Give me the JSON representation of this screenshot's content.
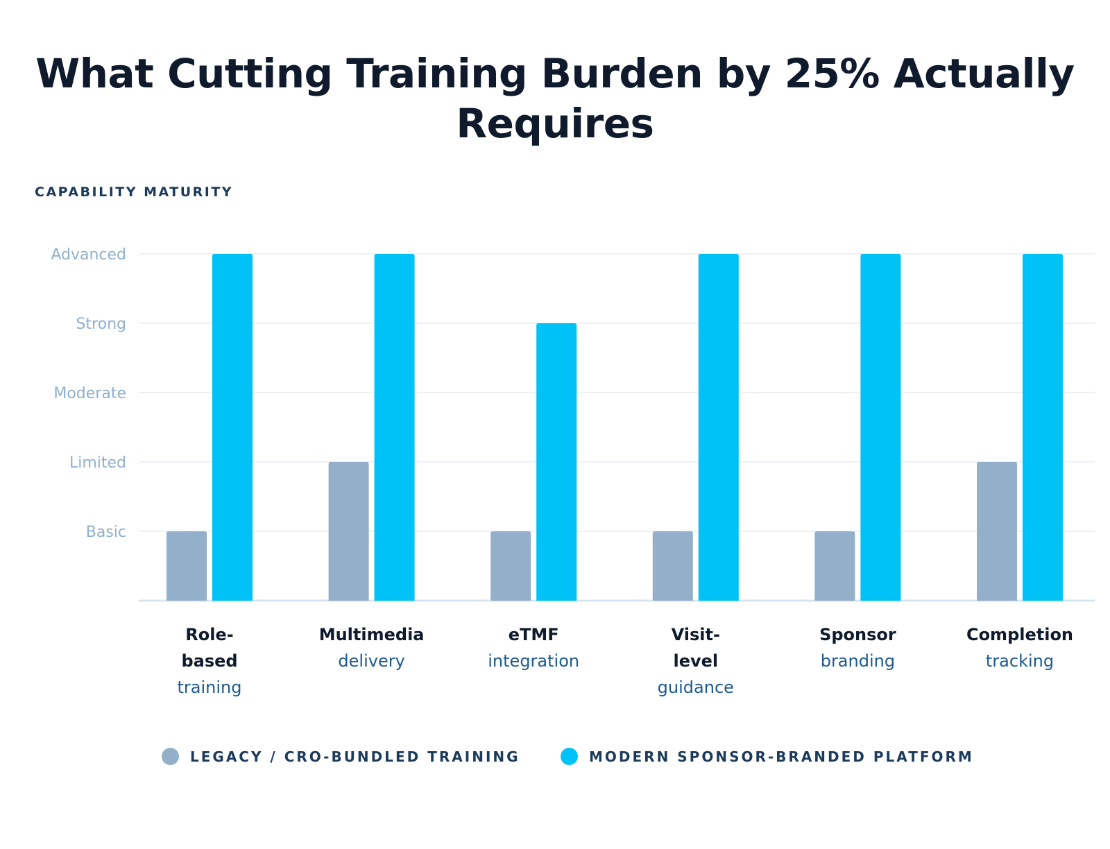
{
  "title_line1": "What Cutting Training Burden by 25% Actually",
  "title_line2": "Requires",
  "chart_data": {
    "type": "bar",
    "title": "What Cutting Training Burden by 25% Actually Requires",
    "ylabel": "CAPABILITY MATURITY",
    "y_levels": [
      "Basic",
      "Limited",
      "Moderate",
      "Strong",
      "Advanced"
    ],
    "ylim": [
      0,
      5
    ],
    "grid": true,
    "legend_position": "bottom",
    "categories": [
      {
        "bold": [
          "Role-",
          "based"
        ],
        "normal": [
          "training"
        ]
      },
      {
        "bold": [
          "Multimedia"
        ],
        "normal": [
          "delivery"
        ]
      },
      {
        "bold": [
          "eTMF"
        ],
        "normal": [
          "integration"
        ]
      },
      {
        "bold": [
          "Visit-",
          "level"
        ],
        "normal": [
          "guidance"
        ]
      },
      {
        "bold": [
          "Sponsor"
        ],
        "normal": [
          "branding"
        ]
      },
      {
        "bold": [
          "Completion"
        ],
        "normal": [
          "tracking"
        ]
      }
    ],
    "series": [
      {
        "name": "LEGACY / CRO-BUNDLED TRAINING",
        "color": "#94afc9",
        "values": [
          1,
          2,
          1,
          1,
          1,
          2
        ]
      },
      {
        "name": "MODERN SPONSOR-BRANDED PLATFORM",
        "color": "#00c2f7",
        "values": [
          5,
          5,
          4,
          5,
          5,
          5
        ]
      }
    ]
  },
  "colors": {
    "title": "#0f1b2d",
    "tick": "#8fb0cc",
    "grid": "#e3edf4",
    "axis": "#d7e5ef",
    "cat_bold": "#0f1b2d",
    "cat_normal": "#1c5a8f"
  }
}
